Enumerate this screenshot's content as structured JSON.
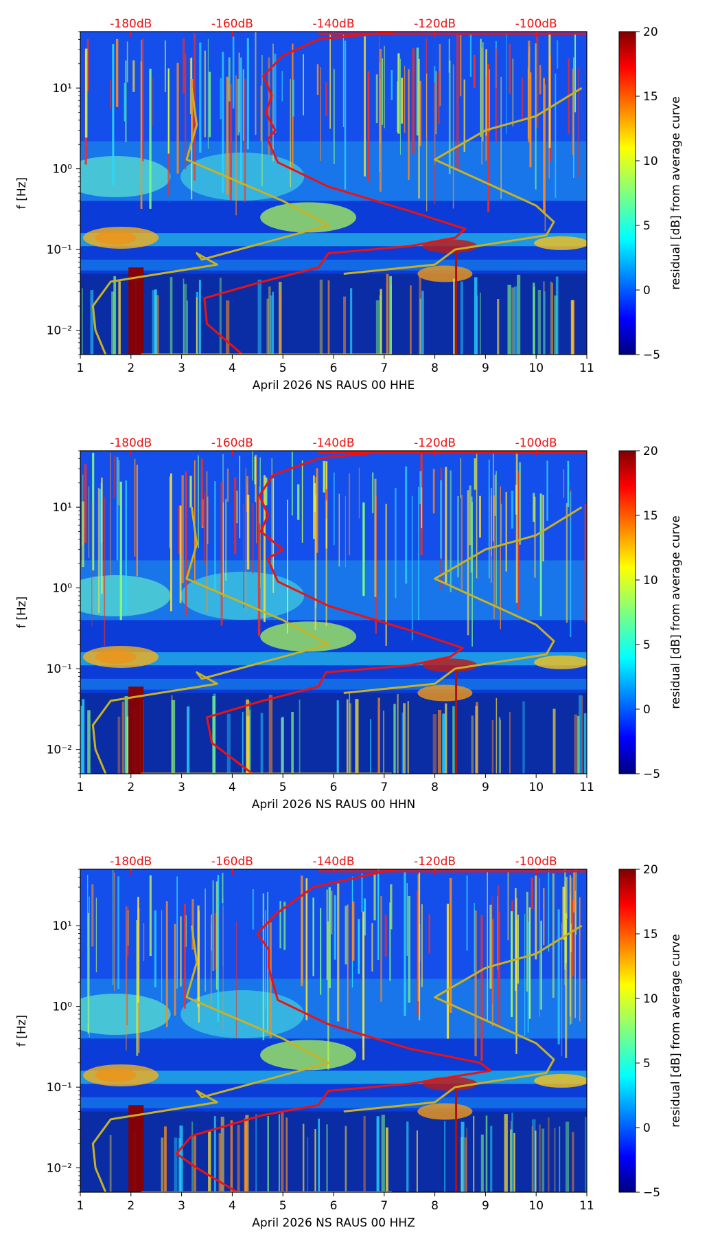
{
  "chart_data": [
    {
      "type": "heatmap",
      "xlabel": "April 2026 NS RAUS 00 HHE",
      "ylabel": "f [Hz]",
      "xlim": [
        1,
        11
      ],
      "ylim": [
        0.005,
        50
      ],
      "yscale": "log",
      "x_ticks": [
        "1",
        "2",
        "3",
        "4",
        "5",
        "6",
        "7",
        "8",
        "9",
        "10",
        "11"
      ],
      "y_ticks": [
        {
          "value": 0.01,
          "label": "10⁻²"
        },
        {
          "value": 0.1,
          "label": "10⁻¹"
        },
        {
          "value": 1,
          "label": "10⁰"
        },
        {
          "value": 10,
          "label": "10¹"
        }
      ],
      "top_axis_labels": [
        "-180dB",
        "-160dB",
        "-140dB",
        "-120dB",
        "-100dB"
      ],
      "colorbar": {
        "label": "residual [dB] from average curve",
        "min": -5,
        "max": 20,
        "ticks": [
          "−5",
          "0",
          "5",
          "10",
          "15",
          "20"
        ]
      },
      "series": [
        {
          "name": "median PSD (red)",
          "color": "#ee1111",
          "x_day": [
            4.2,
            3.5,
            3.45,
            4.6,
            5.7,
            5.9,
            7.5,
            8.4,
            8.6,
            7.5,
            5.9,
            4.9,
            4.7,
            4.9,
            4.6,
            4.8,
            4.6,
            4.9,
            5.7,
            7.2
          ],
          "f_hz": [
            0.005,
            0.012,
            0.025,
            0.04,
            0.06,
            0.09,
            0.11,
            0.14,
            0.18,
            0.3,
            0.6,
            1.2,
            2.3,
            3,
            5,
            8,
            14,
            25,
            40,
            50
          ]
        },
        {
          "name": "noise model (yellow)",
          "color": "#c8b223",
          "x_day": [
            1.5,
            1.3,
            1.25,
            1.6,
            3.7,
            3.3,
            3.4,
            5.9,
            5.0,
            3.1,
            3.3,
            3.2,
            2.2,
            7.15,
            6.2,
            6.2,
            8.0,
            8.4,
            10.2,
            10.35,
            10.0,
            8.0,
            9.0,
            10.0,
            10.9
          ],
          "f_hz": [
            0.005,
            0.01,
            0.02,
            0.04,
            0.065,
            0.09,
            0.075,
            0.2,
            0.4,
            1.3,
            3.5,
            10,
            0.005,
            0.005,
            0.05,
            0.05,
            0.065,
            0.1,
            0.15,
            0.22,
            0.35,
            1.3,
            3.0,
            4.5,
            10
          ]
        }
      ]
    },
    {
      "type": "heatmap",
      "xlabel": "April 2026 NS RAUS 00 HHN",
      "ylabel": "f [Hz]",
      "xlim": [
        1,
        11
      ],
      "ylim": [
        0.005,
        50
      ],
      "yscale": "log",
      "x_ticks": [
        "1",
        "2",
        "3",
        "4",
        "5",
        "6",
        "7",
        "8",
        "9",
        "10",
        "11"
      ],
      "y_ticks": [
        {
          "value": 0.01,
          "label": "10⁻²"
        },
        {
          "value": 0.1,
          "label": "10⁻¹"
        },
        {
          "value": 1,
          "label": "10⁰"
        },
        {
          "value": 10,
          "label": "10¹"
        }
      ],
      "top_axis_labels": [
        "-180dB",
        "-160dB",
        "-140dB",
        "-120dB",
        "-100dB"
      ],
      "colorbar": {
        "label": "residual [dB] from average curve",
        "min": -5,
        "max": 20,
        "ticks": [
          "−5",
          "0",
          "5",
          "10",
          "15",
          "20"
        ]
      },
      "series": [
        {
          "name": "median PSD (red)",
          "color": "#ee1111",
          "x_day": [
            4.4,
            3.6,
            3.5,
            4.6,
            5.7,
            5.85,
            7.5,
            8.3,
            8.55,
            7.5,
            5.9,
            4.9,
            4.7,
            4.9,
            4.6,
            4.8,
            4.6,
            4.9,
            5.7,
            7.2
          ],
          "f_hz": [
            0.005,
            0.012,
            0.025,
            0.04,
            0.06,
            0.09,
            0.11,
            0.14,
            0.18,
            0.3,
            0.6,
            1.2,
            2.3,
            3,
            5,
            8,
            14,
            25,
            40,
            50
          ]
        },
        {
          "name": "noise model (yellow)",
          "color": "#c8b223",
          "x_day": [
            1.5,
            1.3,
            1.25,
            1.6,
            3.7,
            3.3,
            3.4,
            5.9,
            5.0,
            3.1,
            3.3,
            3.2,
            2.2,
            7.15,
            6.2,
            6.2,
            8.0,
            8.4,
            10.2,
            10.35,
            10.0,
            8.0,
            9.0,
            10.0,
            10.9
          ],
          "f_hz": [
            0.005,
            0.01,
            0.02,
            0.04,
            0.065,
            0.09,
            0.075,
            0.2,
            0.4,
            1.3,
            3.5,
            10,
            0.005,
            0.005,
            0.05,
            0.05,
            0.065,
            0.1,
            0.15,
            0.22,
            0.35,
            1.3,
            3.0,
            4.5,
            10
          ]
        }
      ]
    },
    {
      "type": "heatmap",
      "xlabel": "April 2026 NS RAUS 00 HHZ",
      "ylabel": "f [Hz]",
      "xlim": [
        1,
        11
      ],
      "ylim": [
        0.005,
        50
      ],
      "yscale": "log",
      "x_ticks": [
        "1",
        "2",
        "3",
        "4",
        "5",
        "6",
        "7",
        "8",
        "9",
        "10",
        "11"
      ],
      "y_ticks": [
        {
          "value": 0.01,
          "label": "10⁻²"
        },
        {
          "value": 0.1,
          "label": "10⁻¹"
        },
        {
          "value": 1,
          "label": "10⁰"
        },
        {
          "value": 10,
          "label": "10¹"
        }
      ],
      "top_axis_labels": [
        "-180dB",
        "-160dB",
        "-140dB",
        "-120dB",
        "-100dB"
      ],
      "colorbar": {
        "label": "residual [dB] from average curve",
        "min": -5,
        "max": 20,
        "ticks": [
          "−5",
          "0",
          "5",
          "10",
          "15",
          "20"
        ]
      },
      "series": [
        {
          "name": "median PSD (red)",
          "color": "#ee1111",
          "x_day": [
            4.1,
            3.3,
            2.9,
            3.2,
            4.6,
            5.7,
            5.9,
            7.5,
            9.1,
            8.9,
            7.5,
            5.9,
            4.9,
            4.6,
            4.8,
            4.6,
            4.9,
            5.6,
            7.2
          ],
          "f_hz": [
            0.005,
            0.01,
            0.015,
            0.025,
            0.045,
            0.06,
            0.09,
            0.11,
            0.16,
            0.2,
            0.3,
            0.6,
            1.2,
            3,
            5,
            8,
            14,
            30,
            50
          ]
        },
        {
          "name": "noise model (yellow)",
          "color": "#c8b223",
          "x_day": [
            1.5,
            1.3,
            1.25,
            1.6,
            3.7,
            3.3,
            3.4,
            5.9,
            5.0,
            3.1,
            3.3,
            3.2,
            2.2,
            7.15,
            6.2,
            6.2,
            8.0,
            8.4,
            10.2,
            10.35,
            10.0,
            8.0,
            9.0,
            10.0,
            10.9
          ],
          "f_hz": [
            0.005,
            0.01,
            0.02,
            0.04,
            0.065,
            0.09,
            0.075,
            0.2,
            0.4,
            1.3,
            3.5,
            10,
            0.005,
            0.005,
            0.05,
            0.05,
            0.065,
            0.1,
            0.15,
            0.22,
            0.35,
            1.3,
            3.0,
            4.5,
            10
          ]
        }
      ]
    }
  ]
}
